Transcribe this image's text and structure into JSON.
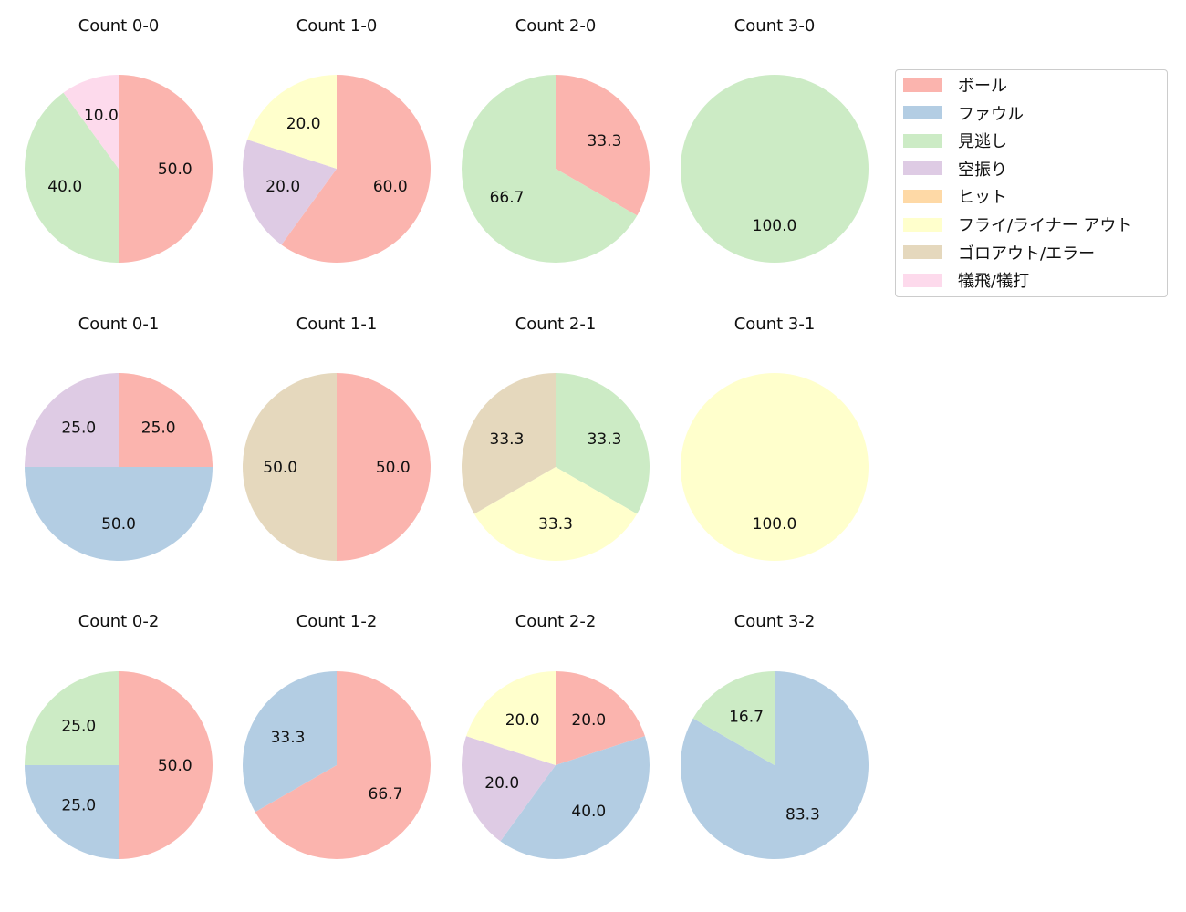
{
  "chart_data": {
    "type": "pie",
    "legend": {
      "position": "upper right",
      "entries": [
        {
          "label": "ボール",
          "color": "#fbb4ae"
        },
        {
          "label": "ファウル",
          "color": "#b3cde3"
        },
        {
          "label": "見逃し",
          "color": "#ccebc5"
        },
        {
          "label": "空振り",
          "color": "#decbe4"
        },
        {
          "label": "ヒット",
          "color": "#fed9a6"
        },
        {
          "label": "フライ/ライナー アウト",
          "color": "#ffffcc"
        },
        {
          "label": "ゴロアウト/エラー",
          "color": "#e5d8bd"
        },
        {
          "label": "犠飛/犠打",
          "color": "#fddaec"
        }
      ]
    },
    "charts": [
      {
        "title": "Count 0-0",
        "slices": [
          {
            "category": "ボール",
            "value": 50.0
          },
          {
            "category": "見逃し",
            "value": 40.0
          },
          {
            "category": "犠飛/犠打",
            "value": 10.0
          }
        ]
      },
      {
        "title": "Count 1-0",
        "slices": [
          {
            "category": "ボール",
            "value": 60.0
          },
          {
            "category": "空振り",
            "value": 20.0
          },
          {
            "category": "フライ/ライナー アウト",
            "value": 20.0
          }
        ]
      },
      {
        "title": "Count 2-0",
        "slices": [
          {
            "category": "ボール",
            "value": 33.3
          },
          {
            "category": "見逃し",
            "value": 66.7
          }
        ]
      },
      {
        "title": "Count 3-0",
        "slices": [
          {
            "category": "見逃し",
            "value": 100.0
          }
        ]
      },
      {
        "title": "Count 0-1",
        "slices": [
          {
            "category": "ボール",
            "value": 25.0
          },
          {
            "category": "ファウル",
            "value": 50.0
          },
          {
            "category": "空振り",
            "value": 25.0
          }
        ]
      },
      {
        "title": "Count 1-1",
        "slices": [
          {
            "category": "ボール",
            "value": 50.0
          },
          {
            "category": "ゴロアウト/エラー",
            "value": 50.0
          }
        ]
      },
      {
        "title": "Count 2-1",
        "slices": [
          {
            "category": "見逃し",
            "value": 33.3
          },
          {
            "category": "フライ/ライナー アウト",
            "value": 33.3
          },
          {
            "category": "ゴロアウト/エラー",
            "value": 33.3
          }
        ]
      },
      {
        "title": "Count 3-1",
        "slices": [
          {
            "category": "フライ/ライナー アウト",
            "value": 100.0
          }
        ]
      },
      {
        "title": "Count 0-2",
        "slices": [
          {
            "category": "ボール",
            "value": 50.0
          },
          {
            "category": "ファウル",
            "value": 25.0
          },
          {
            "category": "見逃し",
            "value": 25.0
          }
        ]
      },
      {
        "title": "Count 1-2",
        "slices": [
          {
            "category": "ボール",
            "value": 66.7
          },
          {
            "category": "ファウル",
            "value": 33.3
          }
        ]
      },
      {
        "title": "Count 2-2",
        "slices": [
          {
            "category": "ボール",
            "value": 20.0
          },
          {
            "category": "ファウル",
            "value": 40.0
          },
          {
            "category": "空振り",
            "value": 20.0
          },
          {
            "category": "フライ/ライナー アウト",
            "value": 20.0
          }
        ]
      },
      {
        "title": "Count 3-2",
        "slices": [
          {
            "category": "ファウル",
            "value": 83.3
          },
          {
            "category": "見逃し",
            "value": 16.7
          }
        ]
      }
    ]
  }
}
